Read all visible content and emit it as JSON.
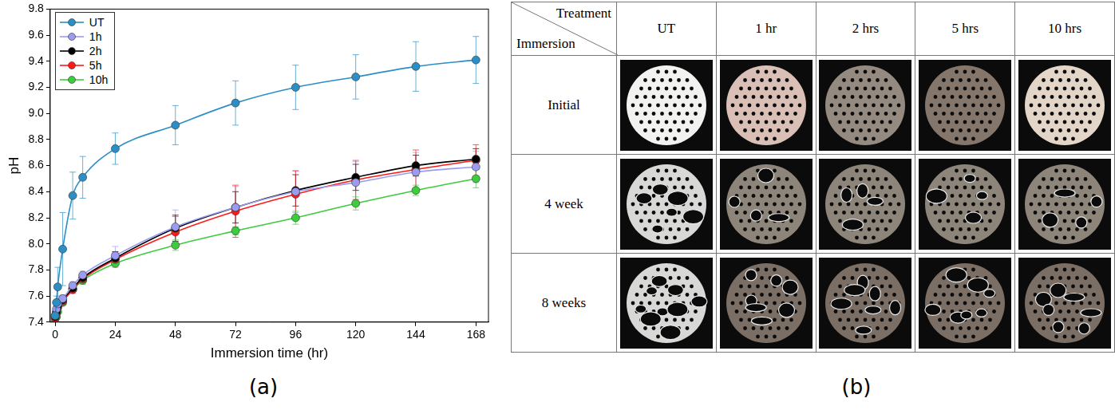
{
  "chart_data": {
    "type": "line",
    "x_label": "Immersion time (hr)",
    "y_label": "pH",
    "x": [
      0,
      0.5,
      1,
      3,
      7,
      11,
      24,
      48,
      72,
      96,
      120,
      144,
      168
    ],
    "series": [
      {
        "name": "UT",
        "color": "#2b8fc6",
        "values": [
          7.45,
          7.55,
          7.67,
          7.96,
          8.37,
          8.51,
          8.73,
          8.91,
          9.08,
          9.2,
          9.28,
          9.36,
          9.41
        ],
        "errors": [
          0.02,
          0.05,
          0.15,
          0.28,
          0.18,
          0.16,
          0.12,
          0.15,
          0.17,
          0.17,
          0.17,
          0.19,
          0.18
        ]
      },
      {
        "name": "1h",
        "color": "#9b9bef",
        "values": [
          7.45,
          7.5,
          7.54,
          7.58,
          7.68,
          7.76,
          7.91,
          8.13,
          8.28,
          8.4,
          8.47,
          8.55,
          8.59
        ],
        "errors": [
          0.02,
          0.02,
          0.03,
          0.03,
          0.03,
          0.03,
          0.07,
          0.13,
          0.16,
          0.16,
          0.16,
          0.15,
          0.12
        ]
      },
      {
        "name": "2h",
        "color": "#000000",
        "values": [
          7.44,
          7.48,
          7.52,
          7.57,
          7.66,
          7.74,
          7.89,
          8.12,
          8.28,
          8.41,
          8.51,
          8.6,
          8.65
        ],
        "errors": [
          0.02,
          0.02,
          0.02,
          0.03,
          0.03,
          0.03,
          0.05,
          0.1,
          0.12,
          0.12,
          0.1,
          0.08,
          0.08
        ]
      },
      {
        "name": "5h",
        "color": "#ff1a1a",
        "values": [
          7.43,
          7.47,
          7.51,
          7.56,
          7.65,
          7.73,
          7.88,
          8.09,
          8.25,
          8.38,
          8.49,
          8.57,
          8.64
        ],
        "errors": [
          0.02,
          0.02,
          0.02,
          0.03,
          0.03,
          0.03,
          0.05,
          0.12,
          0.2,
          0.18,
          0.15,
          0.15,
          0.12
        ]
      },
      {
        "name": "10h",
        "color": "#3ccc3c",
        "values": [
          7.4,
          7.44,
          7.48,
          7.55,
          7.65,
          7.72,
          7.85,
          7.99,
          8.1,
          8.2,
          8.31,
          8.41,
          8.5
        ],
        "errors": [
          0.01,
          0.01,
          0.02,
          0.02,
          0.02,
          0.03,
          0.03,
          0.04,
          0.03,
          0.05,
          0.05,
          0.04,
          0.07
        ]
      }
    ],
    "xlim": [
      -2,
      173
    ],
    "xticks": [
      0,
      24,
      48,
      72,
      96,
      120,
      144,
      168
    ],
    "ylim": [
      7.4,
      9.8
    ],
    "yticks": [
      7.4,
      7.6,
      7.8,
      {
        "value": 8,
        "label": "8.0"
      },
      8.2,
      8.4,
      8.6,
      8.8,
      {
        "value": 9,
        "label": "9.0"
      },
      9.2,
      9.4,
      9.6,
      9.8
    ],
    "legend": "upper left",
    "marker": "circle",
    "grid": false
  },
  "panel_labels": [
    "(a)",
    "(b)"
  ],
  "table": {
    "corner": {
      "top": "Treatment",
      "bottom": "Immersion"
    },
    "columns": [
      "UT",
      "1 hr",
      "2 hrs",
      "5 hrs",
      "10 hrs"
    ],
    "rows": [
      "Initial",
      "4 week",
      "8 weeks"
    ]
  }
}
